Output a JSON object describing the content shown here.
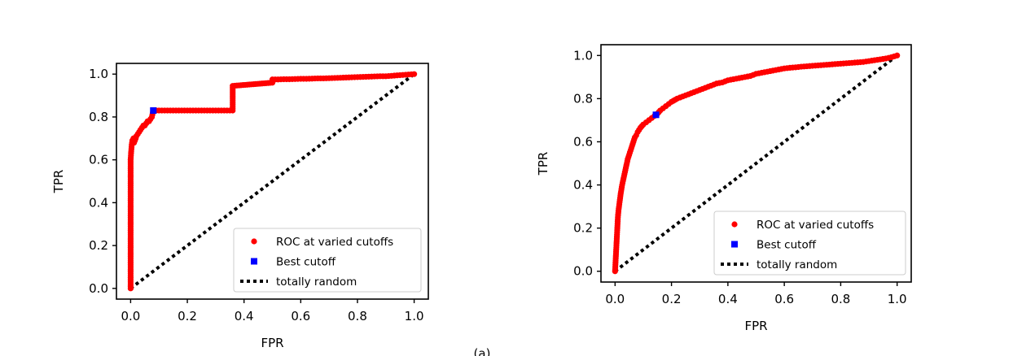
{
  "chart_data": [
    {
      "type": "scatter",
      "xlabel": "FPR",
      "ylabel": "TPR",
      "xlim": [
        -0.05,
        1.05
      ],
      "ylim": [
        -0.05,
        1.05
      ],
      "xticks": [
        "0.0",
        "0.2",
        "0.4",
        "0.6",
        "0.8",
        "1.0"
      ],
      "yticks": [
        "0.0",
        "0.2",
        "0.4",
        "0.6",
        "0.8",
        "1.0"
      ],
      "grid": false,
      "legend_position": "lower-right",
      "series": [
        {
          "name": "ROC at varied cutoffs",
          "marker": "circle",
          "color": "#ff0000",
          "x": [
            0,
            0,
            0,
            0,
            0,
            0,
            0,
            0,
            0,
            0,
            0,
            0,
            0,
            0,
            0,
            0,
            0,
            0,
            0,
            0,
            0,
            0,
            0,
            0,
            0,
            0,
            0,
            0.002,
            0.004,
            0.006,
            0.01,
            0.012,
            0.018,
            0.02,
            0.025,
            0.03,
            0.035,
            0.04,
            0.045,
            0.05,
            0.055,
            0.06,
            0.065,
            0.07,
            0.075,
            0.08,
            0.085,
            0.09,
            0.1,
            0.11,
            0.12,
            0.13,
            0.14,
            0.15,
            0.16,
            0.17,
            0.18,
            0.19,
            0.2,
            0.21,
            0.22,
            0.23,
            0.24,
            0.25,
            0.26,
            0.27,
            0.28,
            0.29,
            0.3,
            0.31,
            0.32,
            0.33,
            0.34,
            0.35,
            0.36,
            0.36,
            0.5,
            0.5,
            0.5,
            0.51,
            0.52,
            0.54,
            0.56,
            0.58,
            0.6,
            0.62,
            0.64,
            0.66,
            0.68,
            0.7,
            0.72,
            0.74,
            0.76,
            0.78,
            0.8,
            0.82,
            0.84,
            0.86,
            0.88,
            0.9,
            0.92,
            0.94,
            0.95,
            0.96,
            0.97,
            0.98,
            0.99,
            1.0
          ],
          "y": [
            0.0,
            0.02,
            0.04,
            0.06,
            0.08,
            0.1,
            0.12,
            0.14,
            0.16,
            0.18,
            0.2,
            0.22,
            0.24,
            0.26,
            0.28,
            0.3,
            0.32,
            0.34,
            0.36,
            0.38,
            0.4,
            0.42,
            0.44,
            0.46,
            0.5,
            0.55,
            0.6,
            0.64,
            0.67,
            0.69,
            0.7,
            0.68,
            0.7,
            0.71,
            0.72,
            0.73,
            0.74,
            0.75,
            0.76,
            0.76,
            0.77,
            0.78,
            0.78,
            0.79,
            0.8,
            0.83,
            0.83,
            0.83,
            0.83,
            0.83,
            0.83,
            0.83,
            0.83,
            0.83,
            0.83,
            0.83,
            0.83,
            0.83,
            0.83,
            0.83,
            0.83,
            0.83,
            0.83,
            0.83,
            0.83,
            0.83,
            0.83,
            0.83,
            0.83,
            0.83,
            0.83,
            0.83,
            0.83,
            0.83,
            0.83,
            0.945,
            0.96,
            0.97,
            0.975,
            0.975,
            0.975,
            0.976,
            0.976,
            0.977,
            0.978,
            0.978,
            0.979,
            0.98,
            0.98,
            0.981,
            0.982,
            0.983,
            0.984,
            0.985,
            0.986,
            0.987,
            0.988,
            0.989,
            0.99,
            0.99,
            0.992,
            0.994,
            0.995,
            0.996,
            0.997,
            0.998,
            0.999,
            1.0
          ]
        },
        {
          "name": "Best cutoff",
          "marker": "square",
          "color": "#0000ff",
          "x": [
            0.08
          ],
          "y": [
            0.83
          ]
        },
        {
          "name": "totally random",
          "marker": "dotted-line",
          "color": "#000000",
          "x": [
            0,
            1
          ],
          "y": [
            0,
            1
          ]
        }
      ]
    },
    {
      "type": "scatter",
      "xlabel": "FPR",
      "ylabel": "TPR",
      "xlim": [
        -0.05,
        1.05
      ],
      "ylim": [
        -0.05,
        1.05
      ],
      "xticks": [
        "0.0",
        "0.2",
        "0.4",
        "0.6",
        "0.8",
        "1.0"
      ],
      "yticks": [
        "0.0",
        "0.2",
        "0.4",
        "0.6",
        "0.8",
        "1.0"
      ],
      "grid": false,
      "legend_position": "lower-right",
      "series": [
        {
          "name": "ROC at varied cutoffs",
          "marker": "circle",
          "color": "#ff0000",
          "x": [
            0,
            0.002,
            0.004,
            0.006,
            0.008,
            0.01,
            0.012,
            0.015,
            0.018,
            0.02,
            0.025,
            0.03,
            0.035,
            0.04,
            0.045,
            0.05,
            0.055,
            0.06,
            0.065,
            0.07,
            0.075,
            0.08,
            0.09,
            0.1,
            0.11,
            0.12,
            0.13,
            0.14,
            0.15,
            0.16,
            0.17,
            0.18,
            0.19,
            0.2,
            0.22,
            0.24,
            0.26,
            0.28,
            0.3,
            0.32,
            0.34,
            0.36,
            0.38,
            0.4,
            0.42,
            0.44,
            0.46,
            0.48,
            0.5,
            0.52,
            0.54,
            0.56,
            0.58,
            0.6,
            0.62,
            0.64,
            0.66,
            0.68,
            0.7,
            0.72,
            0.74,
            0.76,
            0.78,
            0.8,
            0.82,
            0.84,
            0.86,
            0.88,
            0.9,
            0.92,
            0.94,
            0.96,
            0.98,
            0.99,
            1.0
          ],
          "y": [
            0.0,
            0.05,
            0.1,
            0.15,
            0.2,
            0.25,
            0.28,
            0.31,
            0.34,
            0.36,
            0.4,
            0.43,
            0.46,
            0.49,
            0.52,
            0.54,
            0.56,
            0.58,
            0.6,
            0.62,
            0.63,
            0.645,
            0.665,
            0.68,
            0.69,
            0.7,
            0.71,
            0.72,
            0.73,
            0.745,
            0.755,
            0.765,
            0.775,
            0.785,
            0.8,
            0.81,
            0.82,
            0.83,
            0.84,
            0.85,
            0.86,
            0.87,
            0.875,
            0.885,
            0.89,
            0.895,
            0.9,
            0.905,
            0.915,
            0.92,
            0.925,
            0.93,
            0.935,
            0.94,
            0.943,
            0.945,
            0.948,
            0.95,
            0.952,
            0.954,
            0.956,
            0.958,
            0.96,
            0.962,
            0.964,
            0.966,
            0.968,
            0.97,
            0.974,
            0.978,
            0.982,
            0.986,
            0.992,
            0.996,
            1.0
          ]
        },
        {
          "name": "Best cutoff",
          "marker": "square",
          "color": "#0000ff",
          "x": [
            0.145
          ],
          "y": [
            0.725
          ]
        },
        {
          "name": "totally random",
          "marker": "dotted-line",
          "color": "#000000",
          "x": [
            0,
            1
          ],
          "y": [
            0,
            1
          ]
        }
      ]
    }
  ],
  "footer_fragment": "(a)"
}
